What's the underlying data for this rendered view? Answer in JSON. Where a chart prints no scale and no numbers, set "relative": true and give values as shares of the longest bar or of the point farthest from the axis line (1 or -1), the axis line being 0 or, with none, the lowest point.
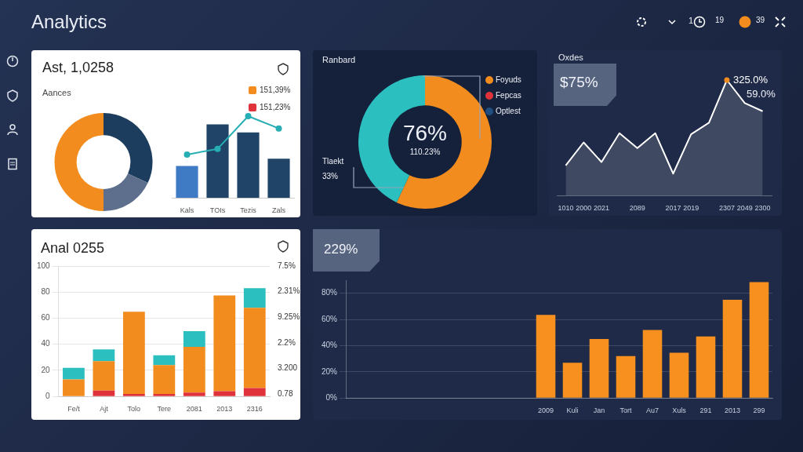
{
  "chart_data": [
    {
      "type": "other",
      "title": "Analytics",
      "annotations": [
        "1",
        "19",
        "39"
      ]
    },
    {
      "type": "donut",
      "title": "Ast, 1,0258",
      "subtitle": "Aances",
      "categories": [
        null,
        null,
        null
      ],
      "values": [
        32,
        18,
        50
      ],
      "colors": [
        "#1d3d5e",
        "#5d6f8c",
        "#f28c1e"
      ],
      "annotations": [
        "151,39%",
        "151,23%"
      ]
    },
    {
      "type": "bar",
      "relative": true,
      "categories": [
        "Kals",
        "TOIs",
        "Tezis",
        "Zals"
      ],
      "series": [
        {
          "type": "bar",
          "colors": [
            "#3f7ac4",
            "#1f4468",
            "#1f4468",
            "#1f4468"
          ],
          "values": [
            0.39,
            0.9,
            0.8,
            0.48
          ]
        },
        {
          "type": "line",
          "color": "#27aeb5",
          "values": [
            0.53,
            0.6,
            1,
            0.85
          ]
        }
      ],
      "marker": "circle"
    },
    {
      "type": "donut",
      "title": "Ranbard",
      "categories": [
        null,
        null
      ],
      "values": [
        57,
        43
      ],
      "colors": [
        "#f28c1e",
        "#2bbfbf"
      ],
      "annotations": [
        "76%",
        "110.23%",
        "Tlaekt",
        "33%",
        "Foyuds",
        "Fepcas",
        "Optlest"
      ]
    },
    {
      "type": "area",
      "title": "Oxdes",
      "relative": true,
      "categories": [
        "1010",
        "2000",
        "2021",
        null,
        "2089",
        null,
        "2017",
        "2019",
        null,
        "2307",
        "2049",
        "2300"
      ],
      "series": [
        {
          "color": "#ffffff",
          "values": [
            0.26,
            0.46,
            0.29,
            0.54,
            0.41,
            0.54,
            0.19,
            0.53,
            0.63,
            1,
            0.8,
            0.73
          ]
        }
      ],
      "annotations": [
        "$75%",
        {
          "text": "325.0%",
          "x": "2307",
          "y": 1
        },
        "59.0%"
      ]
    },
    {
      "type": "bar",
      "title": "Anal 0255",
      "stacked": true,
      "grid": "y",
      "categories": [
        "Fe/t",
        "Ajt",
        "Tolo",
        "Tere",
        "2081",
        "2013",
        "2316"
      ],
      "series": [
        {
          "color": "#e0323a",
          "values": [
            0,
            4.5,
            2,
            2,
            3,
            4,
            6.5
          ]
        },
        {
          "color": "#f28c1e",
          "values": [
            13,
            22.5,
            63,
            22,
            35,
            73.5,
            61.5
          ]
        },
        {
          "color": "#2bbfbf",
          "values": [
            9,
            9,
            0,
            7.5,
            12,
            0,
            15
          ]
        }
      ],
      "ylim": [
        0,
        100
      ],
      "yticks": [
        0,
        20,
        40,
        60,
        80,
        100
      ],
      "annotations": [
        "7.5%",
        "2.31%",
        "9.25%",
        "2.2%",
        "3.200",
        "0.78"
      ]
    },
    {
      "type": "bar",
      "grid": "y",
      "categories": [
        null,
        null,
        null,
        null,
        null,
        null,
        null,
        "2009",
        "Kuli",
        "Jan",
        "Tort",
        "Au7",
        "Xuls",
        "291",
        "2013",
        "299"
      ],
      "values": [
        null,
        null,
        null,
        null,
        null,
        null,
        null,
        63.5,
        27,
        45,
        32,
        52,
        34.5,
        47,
        75,
        88.5
      ],
      "color": "#f7901e",
      "ylim": [
        0,
        90
      ],
      "yticks": [
        {
          "value": 0,
          "label": "0%"
        },
        {
          "value": 20,
          "label": "20%"
        },
        {
          "value": 40,
          "label": "40%"
        },
        {
          "value": 60,
          "label": "60%"
        },
        {
          "value": 80,
          "label": "80%"
        }
      ],
      "annotations": [
        "229%"
      ]
    }
  ]
}
